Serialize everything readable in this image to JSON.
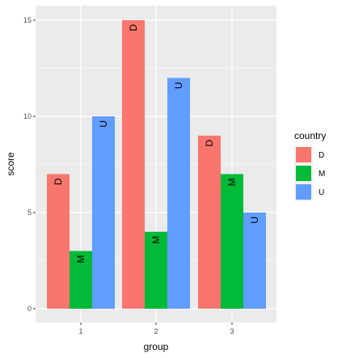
{
  "chart_data": {
    "type": "bar",
    "categories": [
      "1",
      "2",
      "3"
    ],
    "series": [
      {
        "name": "D",
        "color": "#F8766D",
        "values": [
          7,
          15,
          9
        ]
      },
      {
        "name": "M",
        "color": "#00BA38",
        "values": [
          3,
          4,
          7
        ]
      },
      {
        "name": "U",
        "color": "#619CFF",
        "values": [
          10,
          12,
          5
        ]
      }
    ],
    "xlabel": "group",
    "ylabel": "score",
    "ylim": [
      0,
      15.75
    ],
    "yticks": [
      "0",
      "5",
      "10",
      "15"
    ],
    "legend_title": "country",
    "legend_position": "right",
    "grid": true,
    "panel_background": "#EBEBEB",
    "bar_labels_rotated": true
  }
}
